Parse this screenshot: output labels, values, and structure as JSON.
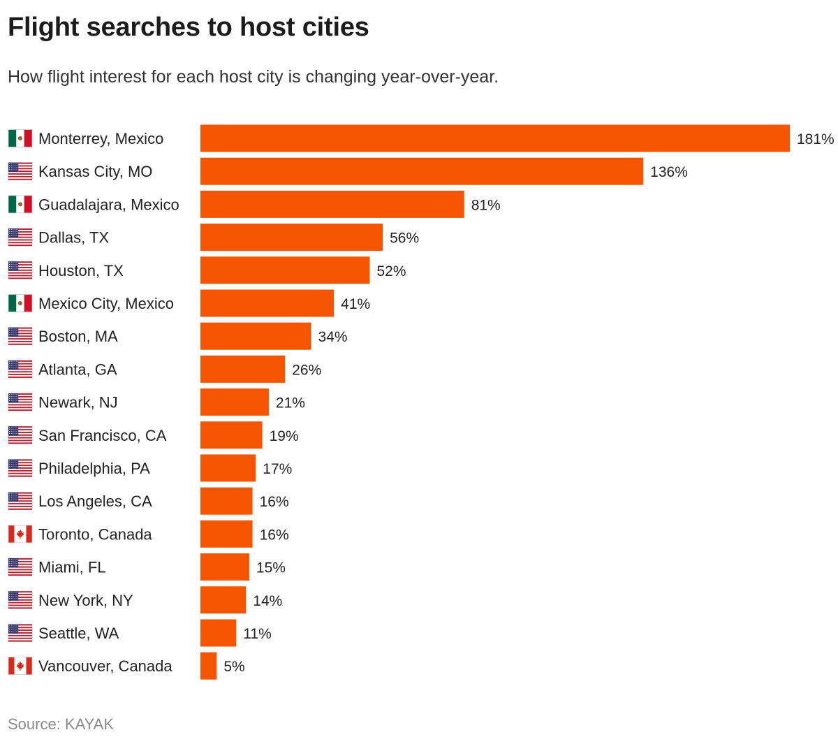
{
  "title": "Flight searches to host cities",
  "subtitle": "How flight interest for each host city is changing year-over-year.",
  "source": "Source: KAYAK",
  "colors": {
    "bar": "#f55500",
    "text": "#222222",
    "source": "#8a8a8a"
  },
  "chart_data": {
    "type": "bar",
    "orientation": "horizontal",
    "categories": [
      "Monterrey, Mexico",
      "Kansas City, MO",
      "Guadalajara, Mexico",
      "Dallas, TX",
      "Houston, TX",
      "Mexico City, Mexico",
      "Boston, MA",
      "Atlanta, GA",
      "Newark, NJ",
      "San Francisco, CA",
      "Philadelphia, PA",
      "Los Angeles, CA",
      "Toronto, Canada",
      "Miami, FL",
      "New York, NY",
      "Seattle, WA",
      "Vancouver, Canada"
    ],
    "values": [
      181,
      136,
      81,
      56,
      52,
      41,
      34,
      26,
      21,
      19,
      17,
      16,
      16,
      15,
      14,
      11,
      5
    ],
    "value_labels": [
      "181%",
      "136%",
      "81%",
      "56%",
      "52%",
      "41%",
      "34%",
      "26%",
      "21%",
      "19%",
      "17%",
      "16%",
      "16%",
      "15%",
      "14%",
      "11%",
      "5%"
    ],
    "flags": [
      "mexico-flag-icon",
      "usa-flag-icon",
      "mexico-flag-icon",
      "usa-flag-icon",
      "usa-flag-icon",
      "mexico-flag-icon",
      "usa-flag-icon",
      "usa-flag-icon",
      "usa-flag-icon",
      "usa-flag-icon",
      "usa-flag-icon",
      "usa-flag-icon",
      "canada-flag-icon",
      "usa-flag-icon",
      "usa-flag-icon",
      "usa-flag-icon",
      "canada-flag-icon"
    ],
    "xlim": [
      0,
      181
    ],
    "grid": false,
    "legend": "none"
  }
}
